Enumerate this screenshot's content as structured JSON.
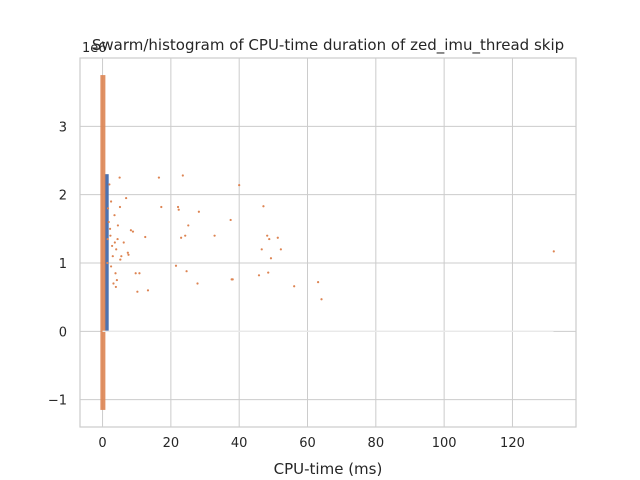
{
  "chart_data": {
    "type": "scatter",
    "title": "Swarm/histogram of CPU-time duration of zed_imu_thread skip",
    "xlabel": "CPU-time (ms)",
    "ylabel": "",
    "y_offset_label": "1e6",
    "xlim": [
      -6.6,
      138.6
    ],
    "ylim": [
      -1.4,
      4.0
    ],
    "xticks": [
      0,
      20,
      40,
      60,
      80,
      100,
      120
    ],
    "xtick_labels": [
      "0",
      "20",
      "40",
      "60",
      "80",
      "100",
      "120"
    ],
    "yticks": [
      -1,
      0,
      1,
      2,
      3
    ],
    "ytick_labels": [
      "−1",
      "0",
      "1",
      "2",
      "3"
    ],
    "grid": true,
    "colors": {
      "histogram": "#4c72b0",
      "swarm": "#dd8452",
      "grid": "#cccccc",
      "spine": "#cccccc"
    },
    "histogram": {
      "bins": [
        {
          "x0": 0.6,
          "x1": 1.8,
          "value": 2.3
        }
      ]
    },
    "swarm_column": {
      "x": 0.1,
      "y_min": -1.15,
      "y_max": 3.75
    },
    "points": [
      [
        2,
        2.15
      ],
      [
        2.5,
        1.9
      ],
      [
        3.5,
        1.7
      ],
      [
        1.8,
        1.6
      ],
      [
        2.2,
        1.5
      ],
      [
        1.5,
        1.35
      ],
      [
        2.8,
        1.25
      ],
      [
        4,
        1.2
      ],
      [
        3,
        1.1
      ],
      [
        1.4,
        1.0
      ],
      [
        2.5,
        0.95
      ],
      [
        3.8,
        0.85
      ],
      [
        4.2,
        0.75
      ],
      [
        3.2,
        0.7
      ],
      [
        1.6,
        1.8
      ],
      [
        2.3,
        1.4
      ],
      [
        4.5,
        1.55
      ],
      [
        3.6,
        1.3
      ],
      [
        5.2,
        1.05
      ],
      [
        4.4,
        1.35
      ],
      [
        5,
        2.25
      ],
      [
        5.1,
        1.82
      ],
      [
        6.9,
        1.95
      ],
      [
        7.4,
        1.15
      ],
      [
        8.3,
        1.48
      ],
      [
        8.9,
        1.46
      ],
      [
        9.7,
        0.85
      ],
      [
        10.2,
        0.58
      ],
      [
        10.8,
        0.85
      ],
      [
        12.5,
        1.38
      ],
      [
        13.3,
        0.6
      ],
      [
        16.5,
        2.25
      ],
      [
        17.2,
        1.82
      ],
      [
        21.5,
        0.96
      ],
      [
        22.1,
        1.82
      ],
      [
        22.3,
        1.78
      ],
      [
        23,
        1.37
      ],
      [
        23.5,
        2.28
      ],
      [
        24.2,
        1.4
      ],
      [
        24.6,
        0.88
      ],
      [
        25.1,
        1.55
      ],
      [
        27.8,
        0.7
      ],
      [
        28.2,
        1.75
      ],
      [
        32.8,
        1.4
      ],
      [
        37.5,
        1.63
      ],
      [
        37.8,
        0.76
      ],
      [
        38.1,
        0.76
      ],
      [
        40,
        2.14
      ],
      [
        45.8,
        0.82
      ],
      [
        46.6,
        1.2
      ],
      [
        47.1,
        1.83
      ],
      [
        48.2,
        1.4
      ],
      [
        48.5,
        0.86
      ],
      [
        48.8,
        1.35
      ],
      [
        49.3,
        1.07
      ],
      [
        51.3,
        1.37
      ],
      [
        52.2,
        1.2
      ],
      [
        56.1,
        0.66
      ],
      [
        63.1,
        0.72
      ],
      [
        64.1,
        0.47
      ],
      [
        132.1,
        1.17
      ],
      [
        5.5,
        1.1
      ],
      [
        6.2,
        1.3
      ],
      [
        7.6,
        1.12
      ],
      [
        3.9,
        0.65
      ]
    ],
    "zero_line": {
      "x0": 0,
      "x1": 132
    }
  }
}
